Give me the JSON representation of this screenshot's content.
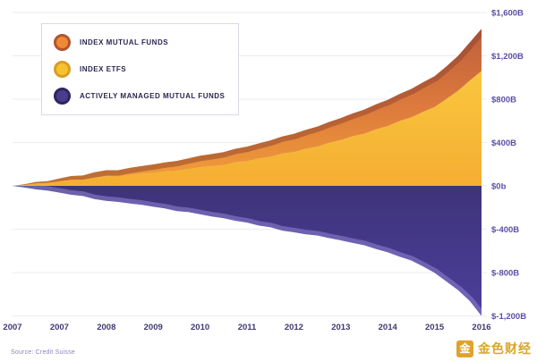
{
  "legend": {
    "items": [
      {
        "label": "INDEX MUTUAL FUNDS",
        "color": "#EE8A35",
        "ring": "#B3532F"
      },
      {
        "label": "INDEX ETFS",
        "color": "#F6C231",
        "ring": "#D89E24"
      },
      {
        "label": "ACTIVELY MANAGED MUTUAL FUNDS",
        "color": "#4A3E8C",
        "ring": "#2E2660"
      }
    ]
  },
  "source": "Source: Credit Suisse",
  "watermark": {
    "icon_char": "金",
    "text": "金色财经"
  },
  "chart_data": {
    "type": "area",
    "title": "",
    "xlabel": "",
    "ylabel": "",
    "grid": true,
    "legend_position": "top-left",
    "x_start": 2007,
    "x_end": 2017,
    "x_step": 0.25,
    "ylim": [
      -1200,
      1600
    ],
    "x_tick_labels": [
      "2007",
      "2007",
      "2008",
      "2009",
      "2010",
      "2011",
      "2012",
      "2013",
      "2014",
      "2015",
      "2016"
    ],
    "y_ticks": [
      {
        "value": 1600,
        "label": "$1,600B"
      },
      {
        "value": 1200,
        "label": "$1,200B"
      },
      {
        "value": 800,
        "label": "$800B"
      },
      {
        "value": 400,
        "label": "$400B"
      },
      {
        "value": 0,
        "label": "$0b"
      },
      {
        "value": -400,
        "label": "$-400B"
      },
      {
        "value": -800,
        "label": "$-800B"
      },
      {
        "value": -1200,
        "label": "$-1,200B"
      }
    ],
    "series": [
      {
        "name": "Index ETFs",
        "color": "#F6B733",
        "stack": "positive-base",
        "values": [
          0,
          8,
          22,
          28,
          42,
          55,
          58,
          76,
          88,
          86,
          100,
          112,
          118,
          132,
          138,
          156,
          172,
          184,
          192,
          218,
          228,
          252,
          268,
          298,
          312,
          342,
          362,
          398,
          422,
          458,
          482,
          522,
          552,
          598,
          632,
          682,
          728,
          802,
          878,
          972,
          1060
        ]
      },
      {
        "name": "Index Mutual Funds",
        "color": "#E98A3A",
        "stack": "positive-top",
        "values": [
          0,
          6,
          14,
          16,
          26,
          36,
          38,
          50,
          56,
          58,
          66,
          70,
          80,
          84,
          92,
          98,
          106,
          110,
          120,
          124,
          134,
          140,
          152,
          158,
          168,
          174,
          186,
          192,
          204,
          210,
          222,
          230,
          242,
          250,
          262,
          272,
          284,
          300,
          322,
          352,
          390
        ]
      },
      {
        "name": "Actively Managed Mutual Funds",
        "color": "#4A3E8C",
        "stack": "negative",
        "values": [
          0,
          -14,
          -32,
          -44,
          -62,
          -82,
          -92,
          -122,
          -138,
          -148,
          -162,
          -174,
          -192,
          -208,
          -232,
          -242,
          -262,
          -282,
          -298,
          -322,
          -338,
          -366,
          -382,
          -412,
          -428,
          -446,
          -458,
          -482,
          -502,
          -526,
          -548,
          -582,
          -612,
          -652,
          -688,
          -742,
          -802,
          -882,
          -962,
          -1062,
          -1200
        ]
      }
    ]
  }
}
